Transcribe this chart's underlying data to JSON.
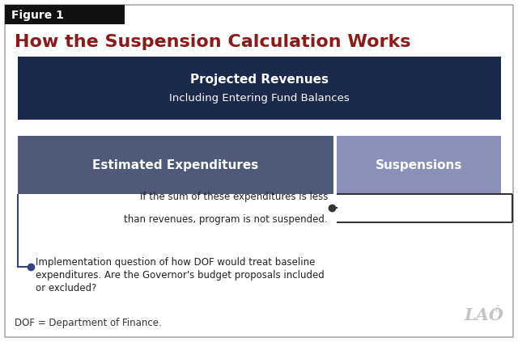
{
  "title": "How the Suspension Calculation Works",
  "figure_label": "Figure 1",
  "background_color": "#ffffff",
  "border_color": "#aaaaaa",
  "header_bg": "#111111",
  "title_color": "#8b1a1a",
  "dark_blue": "#1b2a4a",
  "medium_blue": "#4f5a7a",
  "light_purple": "#8a90b8",
  "box1_label_line1": "Projected Revenues",
  "box1_label_line2": "Including Entering Fund Balances",
  "box2_label": "Estimated Expenditures",
  "box3_label": "Suspensions",
  "annotation1_line1": "If the sum of these expenditures is less",
  "annotation1_line2": "than revenues, program is not suspended.",
  "annotation2_line1": "Implementation question of how DOF would treat baseline",
  "annotation2_line2": "expenditures. Are the Governor's budget proposals included",
  "annotation2_line3": "or excluded?",
  "footer_text": "DOF = Department of Finance.",
  "lao_text": "LAO"
}
